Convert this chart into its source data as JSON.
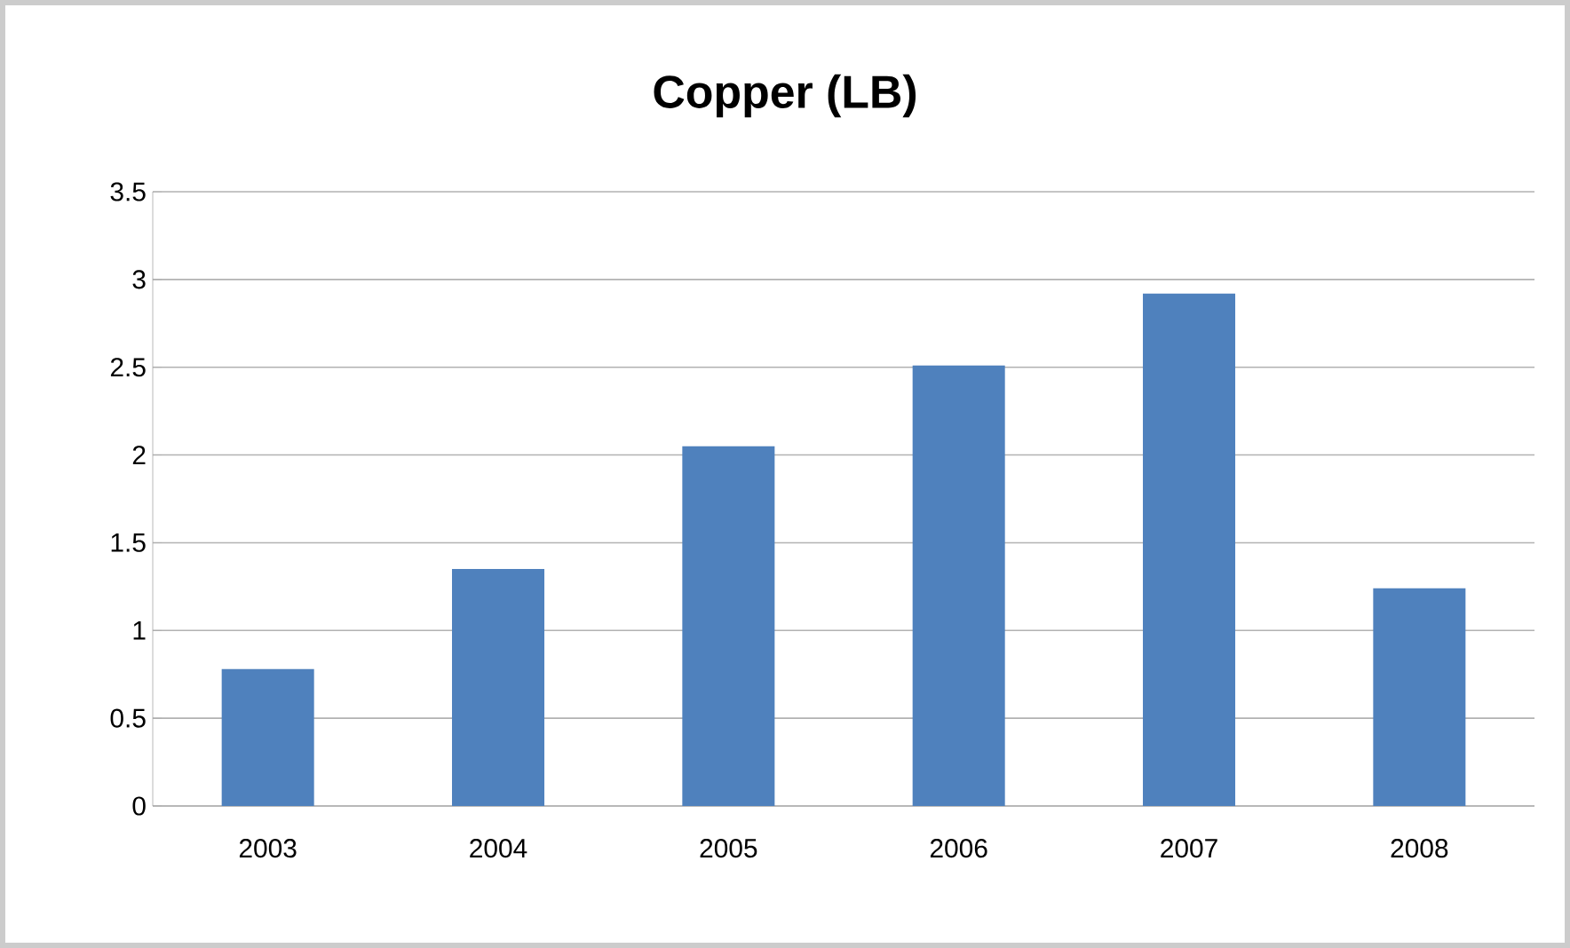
{
  "chart_data": {
    "type": "bar",
    "title": "Copper (LB)",
    "categories": [
      "2003",
      "2004",
      "2005",
      "2006",
      "2007",
      "2008"
    ],
    "values": [
      0.78,
      1.35,
      2.05,
      2.51,
      2.92,
      1.24
    ],
    "color": "#4f81bd",
    "ylim": [
      0,
      3.5
    ],
    "yticks": [
      0,
      0.5,
      1,
      1.5,
      2,
      2.5,
      3,
      3.5
    ],
    "grid": "y"
  }
}
